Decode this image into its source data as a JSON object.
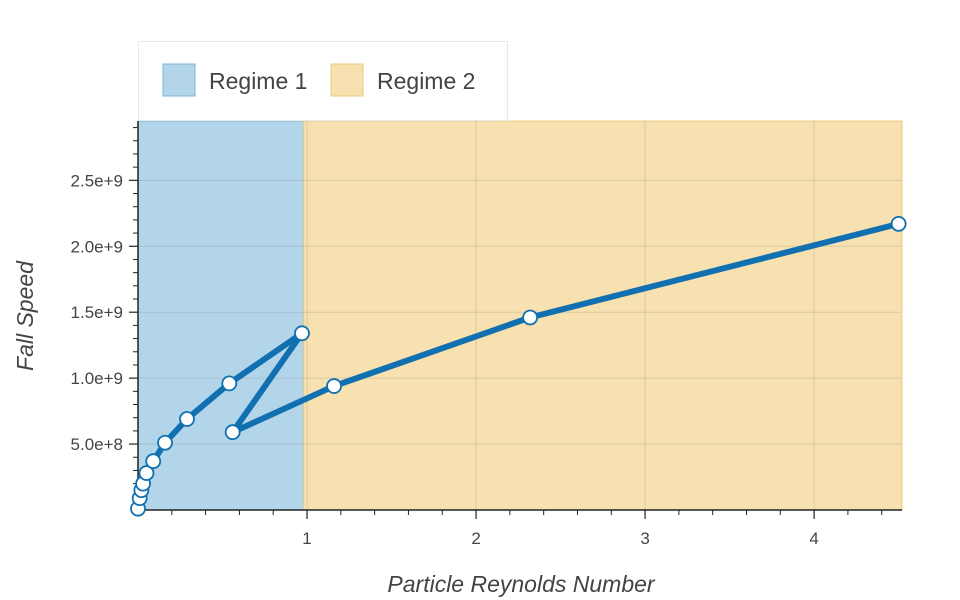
{
  "chart_data": {
    "type": "line",
    "xlabel": "Particle Reynolds Number",
    "ylabel": "Fall Speed",
    "xlim": [
      0,
      4.52
    ],
    "ylim": [
      0,
      2950000000.0
    ],
    "x_ticks": [
      {
        "value": 1,
        "label": "1"
      },
      {
        "value": 2,
        "label": "2"
      },
      {
        "value": 3,
        "label": "3"
      },
      {
        "value": 4,
        "label": "4"
      }
    ],
    "y_ticks": [
      {
        "value": 500000000.0,
        "label": "5.0e+8"
      },
      {
        "value": 1000000000.0,
        "label": "1.0e+9"
      },
      {
        "value": 1500000000.0,
        "label": "1.5e+9"
      },
      {
        "value": 2000000000.0,
        "label": "2.0e+9"
      },
      {
        "value": 2500000000.0,
        "label": "2.5e+9"
      }
    ],
    "grid": true,
    "legend_placement": "top-left",
    "regions": [
      {
        "name": "Regime 1",
        "x_range": [
          0,
          0.98
        ],
        "fill": "#b3d5ea",
        "stroke": "#7fb4d4"
      },
      {
        "name": "Regime 2",
        "x_range": [
          0.98,
          4.52
        ],
        "fill": "#f7e1b0",
        "stroke": "#e8cc7e"
      }
    ],
    "series": [
      {
        "color": "#1170b0",
        "x": [
          0.0,
          0.01,
          0.02,
          0.03,
          0.05,
          0.09,
          0.16,
          0.29,
          0.54,
          0.97,
          0.56,
          1.16,
          2.32,
          4.5
        ],
        "y": [
          10000000.0,
          90000000.0,
          150000000.0,
          200000000.0,
          280000000.0,
          370000000.0,
          510000000.0,
          690000000.0,
          960000000.0,
          1340000000.0,
          590000000.0,
          940000000.0,
          1460000000.0,
          2170000000.0
        ]
      }
    ]
  }
}
